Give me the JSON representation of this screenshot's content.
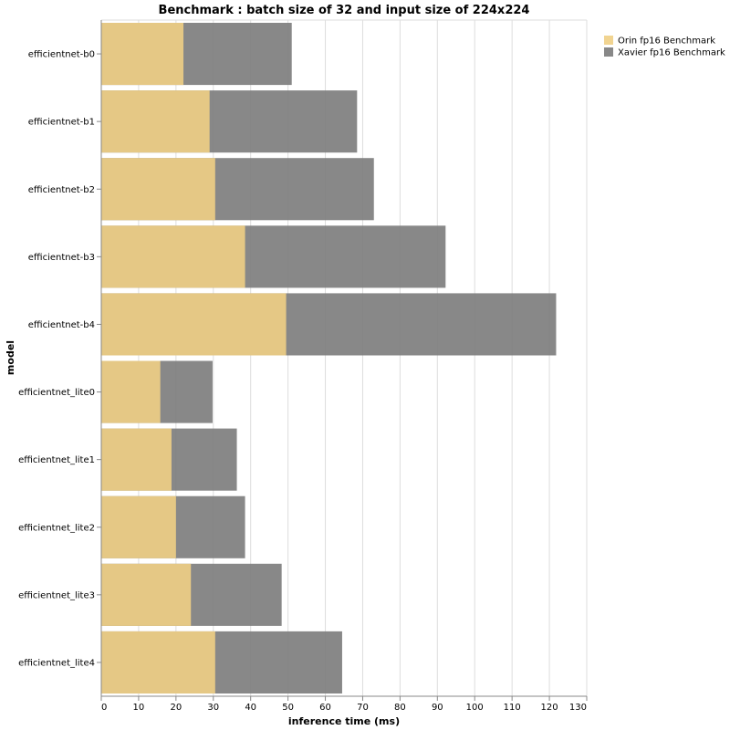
{
  "chart_data": {
    "type": "bar",
    "orientation": "horizontal",
    "stacked": false,
    "overlay": true,
    "title": "Benchmark : batch size of 32 and input size of 224x224",
    "xlabel": "inference time (ms)",
    "ylabel": "model",
    "xlim": [
      0,
      130
    ],
    "xticks": [
      0,
      10,
      20,
      30,
      40,
      50,
      60,
      70,
      80,
      90,
      100,
      110,
      120,
      130
    ],
    "grid": true,
    "legend_position": "top-right",
    "categories": [
      "efficientnet-b0",
      "efficientnet-b1",
      "efficientnet-b2",
      "efficientnet-b3",
      "efficientnet-b4",
      "efficientnet_lite0",
      "efficientnet_lite1",
      "efficientnet_lite2",
      "efficientnet_lite3",
      "efficientnet_lite4"
    ],
    "series": [
      {
        "name": "Orin fp16 Benchmark",
        "color": "#f0cf85",
        "values": [
          22.0,
          29.0,
          30.5,
          38.5,
          49.5,
          15.8,
          18.8,
          20.0,
          24.0,
          30.5
        ]
      },
      {
        "name": "Xavier fp16 Benchmark",
        "color": "#7b7b7b",
        "values": [
          51.0,
          68.5,
          73.0,
          92.2,
          121.8,
          29.8,
          36.3,
          38.5,
          48.3,
          64.5
        ]
      }
    ]
  }
}
